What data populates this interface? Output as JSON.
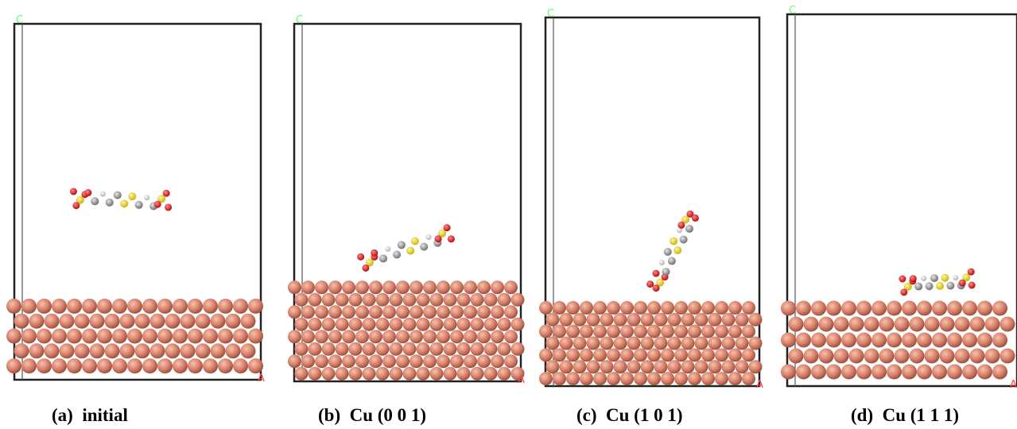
{
  "panels": [
    {
      "caption": "(a)  initial",
      "axis_c": "C",
      "axis_a": "A"
    },
    {
      "caption": "(b)  Cu (0 0 1)",
      "axis_c": "C",
      "axis_a": "A"
    },
    {
      "caption": "(c)  Cu (1 0 1)",
      "axis_c": "C",
      "axis_a": "A"
    },
    {
      "caption": "(d)  Cu (1 1 1)",
      "axis_c": "C",
      "axis_a": "A"
    }
  ]
}
